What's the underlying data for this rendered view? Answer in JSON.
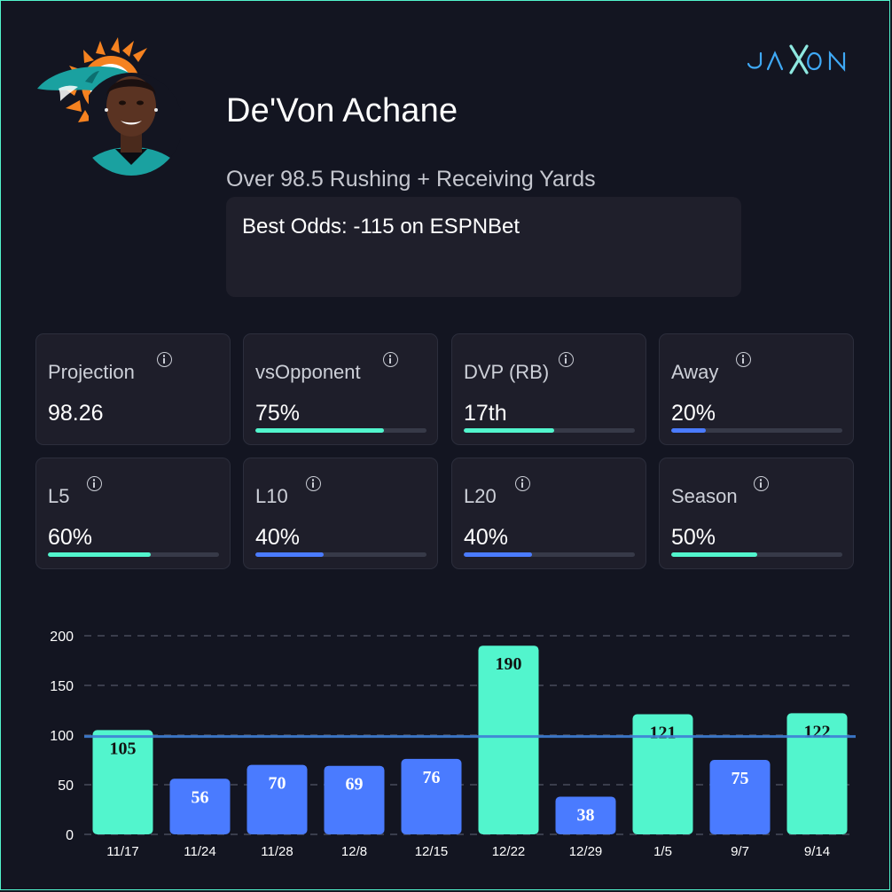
{
  "player": {
    "name": "De'Von Achane",
    "prop": "Over 98.5 Rushing + Receiving Yards",
    "best_odds": "Best Odds: -115 on ESPNBet"
  },
  "brand": {
    "logo_text": "JAXON"
  },
  "team_logo": "dolphin-logo",
  "stats": [
    {
      "label": "Projection",
      "value": "98.26",
      "fill": null,
      "color": "#52f5cd"
    },
    {
      "label": "vsOpponent",
      "value": "75%",
      "fill": 0.75,
      "color": "#52f5cd"
    },
    {
      "label": "DVP (RB)",
      "value": "17th",
      "fill": 0.53,
      "color": "#52f5cd"
    },
    {
      "label": "Away",
      "value": "20%",
      "fill": 0.2,
      "color": "#4a7bff"
    },
    {
      "label": "L5",
      "value": "60%",
      "fill": 0.6,
      "color": "#52f5cd"
    },
    {
      "label": "L10",
      "value": "40%",
      "fill": 0.4,
      "color": "#4a7bff"
    },
    {
      "label": "L20",
      "value": "40%",
      "fill": 0.4,
      "color": "#4a7bff"
    },
    {
      "label": "Season",
      "value": "50%",
      "fill": 0.5,
      "color": "#52f5cd"
    }
  ],
  "colors": {
    "over": "#52f5cd",
    "under": "#4a7bff",
    "line": "#3f7fd6",
    "grid": "#3a3d4c",
    "background": "#131521"
  },
  "chart_data": {
    "type": "bar",
    "categories": [
      "11/17",
      "11/24",
      "11/28",
      "12/8",
      "12/15",
      "12/22",
      "12/29",
      "1/5",
      "9/7",
      "9/14"
    ],
    "values": [
      105,
      56,
      70,
      69,
      76,
      190,
      38,
      121,
      75,
      122
    ],
    "threshold": 98.5,
    "ylim": [
      0,
      200
    ],
    "yticks": [
      0,
      50,
      100,
      150,
      200
    ],
    "title": "",
    "xlabel": "",
    "ylabel": ""
  }
}
